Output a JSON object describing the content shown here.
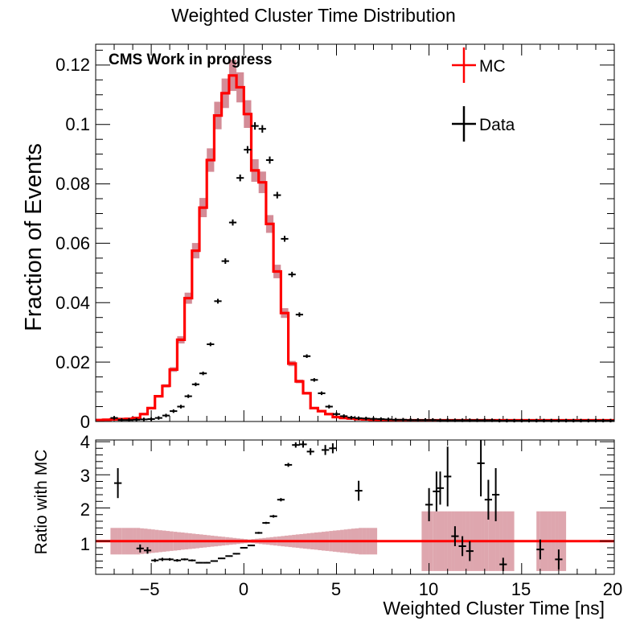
{
  "title": "Weighted Cluster Time Distribution",
  "top_panel": {
    "ylabel": "Fraction of Events",
    "annotation": "CMS Work in progress",
    "ytick_labels": [
      "0",
      "0.02",
      "0.04",
      "0.06",
      "0.08",
      "0.1",
      "0.12"
    ],
    "legend": {
      "mc_label": "MC",
      "data_label": "Data"
    }
  },
  "bottom_panel": {
    "ylabel": "Ratio with MC",
    "ytick_labels": [
      "1",
      "2",
      "3",
      "4"
    ]
  },
  "xlabel": "Weighted Cluster Time [ns]",
  "xtick_labels": [
    "−5",
    "0",
    "5",
    "10",
    "15",
    "20"
  ],
  "colors": {
    "mc": "#ff0000",
    "mc_band": "#a00018",
    "data": "#000000"
  },
  "chart_data": [
    {
      "type": "line",
      "title": "Weighted Cluster Time Distribution",
      "xlabel": "",
      "ylabel": "Fraction of Events",
      "xlim": [
        -8,
        20
      ],
      "ylim": [
        0,
        0.127
      ],
      "bin_width": 0.4,
      "legend_position": "top-right",
      "annotation": "CMS Work in progress",
      "series": [
        {
          "name": "MC",
          "style": "step-histogram",
          "x": [
            -8.0,
            -7.6,
            -7.2,
            -6.8,
            -6.4,
            -6.0,
            -5.6,
            -5.2,
            -4.8,
            -4.4,
            -4.0,
            -3.6,
            -3.2,
            -2.8,
            -2.4,
            -2.0,
            -1.6,
            -1.2,
            -0.8,
            -0.4,
            0.0,
            0.4,
            0.8,
            1.2,
            1.6,
            2.0,
            2.4,
            2.8,
            3.2,
            3.6,
            4.0,
            4.4,
            4.8,
            5.2,
            5.6,
            6.0,
            6.4,
            6.8,
            7.2,
            7.6
          ],
          "values": [
            0.0005,
            0.0006,
            0.0007,
            0.0008,
            0.0009,
            0.0012,
            0.0025,
            0.0045,
            0.0085,
            0.012,
            0.0175,
            0.0275,
            0.0415,
            0.0575,
            0.072,
            0.088,
            0.103,
            0.1105,
            0.1165,
            0.1125,
            0.1035,
            0.0845,
            0.0805,
            0.0665,
            0.0505,
            0.0365,
            0.0195,
            0.0135,
            0.0095,
            0.0045,
            0.0035,
            0.0025,
            0.0015,
            0.0012,
            0.001,
            0.0008,
            0.0007,
            0.0006,
            0.0005,
            0.0004
          ],
          "tail": {
            "x_range": [
              8,
              20
            ],
            "value": 0.0004
          }
        },
        {
          "name": "Data",
          "style": "points-with-errorbars",
          "x": [
            -7.0,
            -6.6,
            -6.2,
            -5.8,
            -5.4,
            -5.0,
            -4.6,
            -4.2,
            -3.8,
            -3.4,
            -3.0,
            -2.6,
            -2.2,
            -1.8,
            -1.4,
            -1.0,
            -0.6,
            -0.2,
            0.2,
            0.6,
            1.0,
            1.4,
            1.8,
            2.2,
            2.6,
            3.0,
            3.4,
            3.8,
            4.2,
            4.6,
            5.0,
            5.4,
            5.8,
            6.2,
            6.6,
            7.0,
            7.4,
            7.8,
            8.2,
            8.6,
            9.0,
            9.4,
            9.8,
            10.2,
            10.6,
            11.0,
            11.4,
            11.8,
            12.2,
            12.6,
            13.0,
            13.4,
            13.8,
            14.2,
            14.6,
            15.0,
            15.4,
            15.8,
            16.2,
            16.6,
            17.0,
            17.4,
            17.8,
            18.2,
            18.6,
            19.0,
            19.4,
            19.8
          ],
          "values": [
            0.0012,
            0.0005,
            0.0005,
            0.0006,
            0.0007,
            0.0008,
            0.0012,
            0.002,
            0.0035,
            0.005,
            0.0085,
            0.0125,
            0.0162,
            0.026,
            0.0405,
            0.054,
            0.067,
            0.082,
            0.0915,
            0.0995,
            0.0985,
            0.088,
            0.0762,
            0.0615,
            0.0495,
            0.036,
            0.022,
            0.014,
            0.0095,
            0.005,
            0.0025,
            0.0018,
            0.0013,
            0.0011,
            0.001,
            0.0009,
            0.0008,
            0.0007,
            0.0006,
            0.0006,
            0.0005,
            0.0005,
            0.0005,
            0.0005,
            0.0004,
            0.0004,
            0.0004,
            0.0004,
            0.0004,
            0.0004,
            0.0004,
            0.0004,
            0.0003,
            0.0003,
            0.0003,
            0.0003,
            0.0003,
            0.0003,
            0.0003,
            0.0003,
            0.0003,
            0.0003,
            0.0003,
            0.0003,
            0.0003,
            0.0003,
            0.0003,
            0.0003
          ]
        }
      ]
    },
    {
      "type": "scatter",
      "title": "",
      "xlabel": "Weighted Cluster Time [ns]",
      "ylabel": "Ratio with MC",
      "xlim": [
        -8,
        20
      ],
      "ylim": [
        0,
        4.05
      ],
      "reference_line": 1,
      "series": [
        {
          "name": "",
          "style": "ratio-points",
          "x": [
            -6.8,
            -5.6,
            -5.2,
            -4.8,
            -4.4,
            -4.0,
            -3.6,
            -3.2,
            -2.8,
            -2.4,
            -2.0,
            -1.6,
            -1.2,
            -0.8,
            -0.4,
            0.0,
            0.4,
            0.8,
            1.2,
            1.6,
            2.0,
            2.4,
            2.8,
            3.2,
            3.6,
            4.4,
            4.8,
            6.2,
            10.0,
            10.4,
            10.6,
            11.0,
            11.4,
            11.8,
            12.2,
            12.8,
            13.2,
            13.6,
            14.0,
            16.0,
            17.0
          ],
          "values": [
            2.75,
            0.78,
            0.72,
            0.42,
            0.45,
            0.45,
            0.42,
            0.45,
            0.42,
            0.35,
            0.35,
            0.4,
            0.48,
            0.55,
            0.62,
            0.8,
            0.87,
            1.25,
            1.55,
            1.75,
            2.25,
            3.3,
            3.9,
            3.92,
            3.7,
            3.75,
            3.8,
            2.52,
            2.1,
            2.5,
            2.6,
            2.95,
            1.15,
            0.85,
            0.7,
            3.35,
            2.25,
            2.4,
            0.3,
            0.75,
            0.45
          ],
          "errors": [
            0.45,
            0.12,
            0.1,
            0.05,
            0.05,
            0.04,
            0.04,
            0.03,
            0.03,
            0.02,
            0.02,
            0.02,
            0.02,
            0.02,
            0.02,
            0.02,
            0.02,
            0.03,
            0.03,
            0.04,
            0.05,
            0.06,
            0.08,
            0.1,
            0.1,
            0.15,
            0.15,
            0.3,
            0.5,
            0.6,
            0.5,
            0.9,
            0.3,
            0.3,
            0.3,
            1.0,
            0.6,
            0.8,
            0.2,
            0.3,
            0.3
          ]
        }
      ]
    }
  ]
}
